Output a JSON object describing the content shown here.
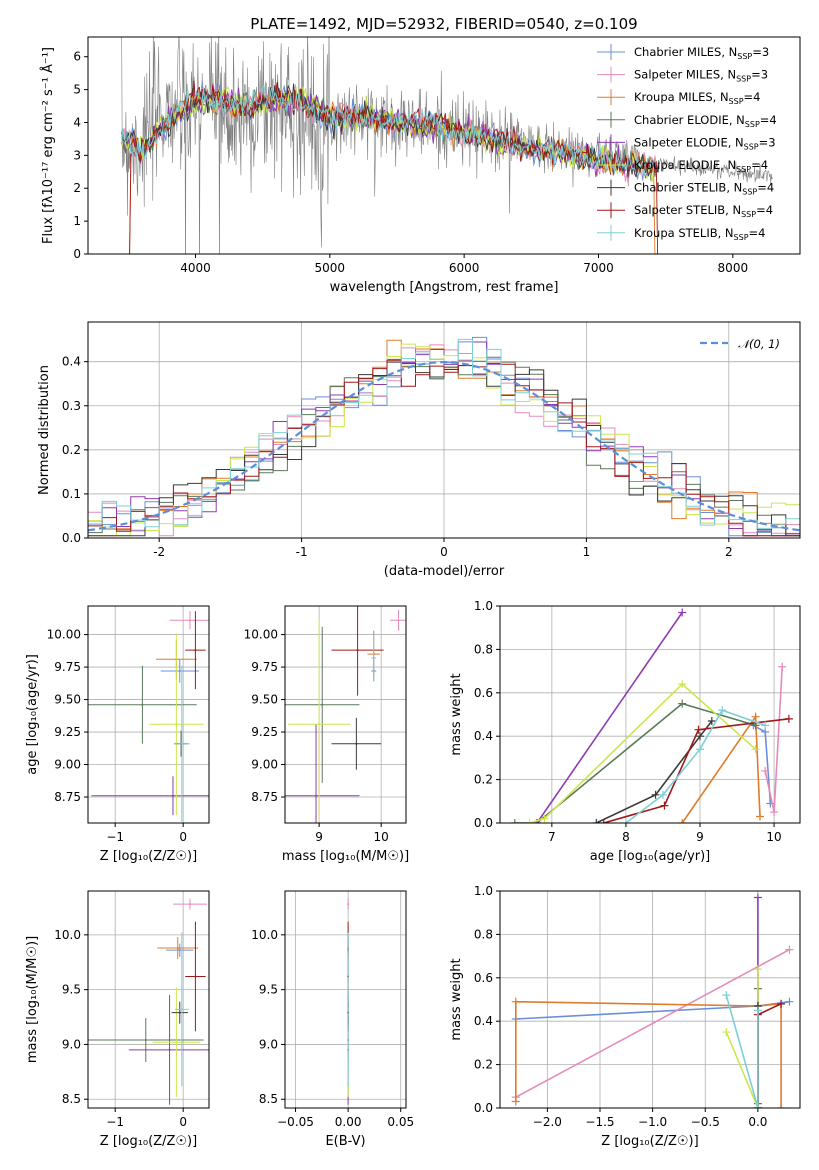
{
  "title": "PLATE=1492, MJD=52932, FIBERID=0540, z=0.109",
  "colors": {
    "Chabrier MILES": "#6a8fd8",
    "Salpeter MILES": "#e58bbb",
    "Kroupa MILES": "#e07b2a",
    "Chabrier ELODIE": "#5a7a5a",
    "Salpeter ELODIE": "#8e3bb0",
    "Kroupa ELODIE": "#cce64d",
    "Chabrier STELIB": "#3a3a3a",
    "Salpeter STELIB": "#a01818",
    "Kroupa STELIB": "#7ccfd6",
    "data": "#808080",
    "gauss": "#5a8fdc",
    "grid": "#b0b0b0"
  },
  "chart_data": [
    {
      "id": "spectrum",
      "type": "line",
      "title": "PLATE=1492, MJD=52932, FIBERID=0540, z=0.109",
      "xlabel": "wavelength [Angstrom, rest frame]",
      "ylabel": "Flux [fλ10⁻¹⁷ erg cm⁻² s⁻¹ Å⁻¹]",
      "xlim": [
        3200,
        8500
      ],
      "ylim": [
        0,
        6.6
      ],
      "xticks": [
        4000,
        5000,
        6000,
        7000,
        8000
      ],
      "yticks": [
        0,
        1,
        2,
        3,
        4,
        5,
        6
      ],
      "grid": false,
      "legend": "top-right",
      "legend_entries": [
        {
          "series": "Chabrier MILES",
          "label": "Chabrier MILES, N",
          "sub": "SSP",
          "suffix": "=3"
        },
        {
          "series": "Salpeter MILES",
          "label": "Salpeter MILES, N",
          "sub": "SSP",
          "suffix": "=3"
        },
        {
          "series": "Kroupa MILES",
          "label": "Kroupa MILES, N",
          "sub": "SSP",
          "suffix": "=4"
        },
        {
          "series": "Chabrier ELODIE",
          "label": "Chabrier ELODIE, N",
          "sub": "SSP",
          "suffix": "=4"
        },
        {
          "series": "Salpeter ELODIE",
          "label": "Salpeter ELODIE, N",
          "sub": "SSP",
          "suffix": "=3"
        },
        {
          "series": "Kroupa ELODIE",
          "label": "Kroupa ELODIE, N",
          "sub": "SSP",
          "suffix": "=4"
        },
        {
          "series": "Chabrier STELIB",
          "label": "Chabrier STELIB, N",
          "sub": "SSP",
          "suffix": "=4"
        },
        {
          "series": "Salpeter STELIB",
          "label": "Salpeter STELIB, N",
          "sub": "SSP",
          "suffix": "=4"
        },
        {
          "series": "Kroupa STELIB",
          "label": "Kroupa STELIB, N",
          "sub": "SSP",
          "suffix": "=4"
        }
      ],
      "data_envelope": {
        "x": [
          3450,
          3550,
          3650,
          3750,
          3850,
          3950,
          4050,
          4150,
          4250,
          4350,
          4500,
          4700,
          4900,
          5100,
          5300,
          5500,
          5700,
          5900,
          6100,
          6300,
          6500,
          6700,
          6900,
          7100,
          7300,
          7500,
          7700,
          7900,
          8100,
          8300
        ],
        "y": [
          3.5,
          3.3,
          3.6,
          4.5,
          4.4,
          4.3,
          4.6,
          4.4,
          4.3,
          4.2,
          4.5,
          4.5,
          4.0,
          4.2,
          4.1,
          4.1,
          3.9,
          3.8,
          3.6,
          3.5,
          3.3,
          3.2,
          3.1,
          3.0,
          2.85,
          2.75,
          2.65,
          2.55,
          2.45,
          2.35
        ]
      },
      "model_envelope": {
        "x": [
          3450,
          3600,
          3800,
          4000,
          4200,
          4400,
          4600,
          4800,
          5000,
          5200,
          5400,
          5600,
          5800,
          6000,
          6200,
          6400,
          6600,
          6800,
          7000,
          7200,
          7400
        ],
        "y": [
          3.6,
          3.2,
          4.2,
          4.8,
          4.8,
          4.6,
          4.9,
          4.8,
          4.3,
          4.3,
          4.2,
          4.1,
          4.0,
          3.8,
          3.6,
          3.4,
          3.25,
          3.1,
          2.95,
          2.8,
          2.7
        ]
      }
    },
    {
      "id": "residuals",
      "type": "line",
      "xlabel": "(data-model)/error",
      "ylabel": "Normed distribution",
      "xlim": [
        -2.5,
        2.5
      ],
      "ylim": [
        0,
        0.49
      ],
      "xticks": [
        -2,
        -1,
        0,
        1,
        2
      ],
      "yticks": [
        0.0,
        0.1,
        0.2,
        0.3,
        0.4
      ],
      "ytick_labels": [
        "0.0",
        "0.1",
        "0.2",
        "0.3",
        "0.4"
      ],
      "grid": true,
      "legend": "top-right",
      "legend_label": "𝒩(0, 1)",
      "bin_width": 0.1,
      "hist_start": -2.5
    },
    {
      "id": "age-Z",
      "type": "scatter",
      "xlabel": "Z [log₁₀(Z/Z☉)]",
      "ylabel": "age  [log₁₀(age/yr)]",
      "xlim": [
        -1.4,
        0.38
      ],
      "ylim": [
        8.55,
        10.22
      ],
      "xticks": [
        -1,
        0
      ],
      "xtick_labels": [
        "−1",
        "0"
      ],
      "yticks": [
        8.75,
        9.0,
        9.25,
        9.5,
        9.75,
        10.0
      ],
      "ytick_labels": [
        "8.75",
        "9.00",
        "9.25",
        "9.50",
        "9.75",
        "10.00"
      ],
      "grid": true,
      "points": [
        {
          "series": "Chabrier MILES",
          "x": -0.05,
          "y": 9.72,
          "xerr": 0.28,
          "yerr": 0.09
        },
        {
          "series": "Salpeter MILES",
          "x": 0.1,
          "y": 10.11,
          "xerr": 0.3,
          "yerr": 0.07
        },
        {
          "series": "Kroupa MILES",
          "x": -0.1,
          "y": 9.81,
          "xerr": 0.3,
          "yerr": 0.15
        },
        {
          "series": "Chabrier ELODIE",
          "x": -0.6,
          "y": 9.46,
          "xerr": 0.8,
          "yerr": 0.3
        },
        {
          "series": "Salpeter ELODIE",
          "x": -0.15,
          "y": 8.76,
          "xerr": 1.2,
          "yerr": 0.15
        },
        {
          "series": "Kroupa ELODIE",
          "x": -0.1,
          "y": 9.31,
          "xerr": 0.4,
          "yerr": 0.7
        },
        {
          "series": "Chabrier STELIB",
          "x": -0.03,
          "y": 9.16,
          "xerr": 0.1,
          "yerr": 0.1
        },
        {
          "series": "Salpeter STELIB",
          "x": 0.18,
          "y": 9.88,
          "xerr": 0.15,
          "yerr": 0.3
        },
        {
          "series": "Kroupa STELIB",
          "x": -0.02,
          "y": 9.16,
          "xerr": 0.12,
          "yerr": 0.6
        }
      ]
    },
    {
      "id": "age-mass",
      "type": "scatter",
      "xlabel": "mass [log₁₀(M/M☉)]",
      "ylabel": "",
      "xlim": [
        8.45,
        10.4
      ],
      "ylim": [
        8.55,
        10.22
      ],
      "xticks": [
        9,
        10
      ],
      "xtick_labels": [
        "9",
        "10"
      ],
      "yticks": [
        8.75,
        9.0,
        9.25,
        9.5,
        9.75,
        10.0
      ],
      "ytick_labels": [
        "8.75",
        "9.00",
        "9.25",
        "9.50",
        "9.75",
        "10.00"
      ],
      "grid": true,
      "points": [
        {
          "series": "Chabrier MILES",
          "x": 9.88,
          "y": 9.72,
          "xerr": 0.04,
          "yerr": 0.08
        },
        {
          "series": "Salpeter MILES",
          "x": 10.28,
          "y": 10.11,
          "xerr": 0.14,
          "yerr": 0.08
        },
        {
          "series": "Kroupa MILES",
          "x": 9.88,
          "y": 9.85,
          "xerr": 0.1,
          "yerr": 0.18
        },
        {
          "series": "Chabrier ELODIE",
          "x": 9.05,
          "y": 9.46,
          "xerr": 0.6,
          "yerr": 0.6
        },
        {
          "series": "Salpeter ELODIE",
          "x": 8.95,
          "y": 8.76,
          "xerr": 0.7,
          "yerr": 0.55
        },
        {
          "series": "Kroupa ELODIE",
          "x": 9.0,
          "y": 9.31,
          "xerr": 0.5,
          "yerr": 0.8
        },
        {
          "series": "Chabrier STELIB",
          "x": 9.6,
          "y": 9.16,
          "xerr": 0.4,
          "yerr": 0.2
        },
        {
          "series": "Salpeter STELIB",
          "x": 9.62,
          "y": 9.88,
          "xerr": 0.42,
          "yerr": 0.35
        },
        {
          "series": "Kroupa STELIB",
          "x": 9.88,
          "y": 9.82,
          "xerr": 0.04,
          "yerr": 0.18
        }
      ]
    },
    {
      "id": "weight-age",
      "type": "line",
      "xlabel": "age  [log₁₀(age/yr)]",
      "ylabel": "mass weight",
      "xlim": [
        6.3,
        10.35
      ],
      "ylim": [
        0,
        1.0
      ],
      "xticks": [
        7,
        8,
        9,
        10
      ],
      "yticks": [
        0.0,
        0.2,
        0.4,
        0.6,
        0.8,
        1.0
      ],
      "ytick_labels": [
        "0.0",
        "0.2",
        "0.4",
        "0.6",
        "0.8",
        "1.0"
      ],
      "grid": true,
      "series": [
        {
          "name": "Chabrier MILES",
          "x": [
            9.72,
            9.88,
            9.95
          ],
          "y": [
            0.45,
            0.42,
            0.09
          ]
        },
        {
          "name": "Salpeter MILES",
          "x": [
            9.88,
            10.0,
            10.11
          ],
          "y": [
            0.24,
            0.05,
            0.72
          ]
        },
        {
          "name": "Kroupa MILES",
          "x": [
            8.76,
            9.75,
            9.81
          ],
          "y": [
            0.0,
            0.49,
            0.03
          ]
        },
        {
          "name": "Chabrier ELODIE",
          "x": [
            6.5,
            6.8,
            8.76,
            9.75
          ],
          "y": [
            0.0,
            0.0,
            0.55,
            0.45
          ]
        },
        {
          "name": "Salpeter ELODIE",
          "x": [
            6.8,
            8.76
          ],
          "y": [
            0.0,
            0.97
          ]
        },
        {
          "name": "Kroupa ELODIE",
          "x": [
            6.7,
            6.9,
            8.76,
            9.75
          ],
          "y": [
            0.0,
            0.02,
            0.64,
            0.34
          ]
        },
        {
          "name": "Chabrier STELIB",
          "x": [
            7.6,
            8.4,
            9.0,
            9.16
          ],
          "y": [
            0.0,
            0.13,
            0.4,
            0.47
          ]
        },
        {
          "name": "Salpeter STELIB",
          "x": [
            7.7,
            8.52,
            8.98,
            10.2
          ],
          "y": [
            0.0,
            0.08,
            0.43,
            0.48
          ]
        },
        {
          "name": "Kroupa STELIB",
          "x": [
            8.0,
            8.5,
            9.0,
            9.3,
            9.88
          ],
          "y": [
            0.0,
            0.13,
            0.34,
            0.52,
            0.45
          ]
        }
      ]
    },
    {
      "id": "mass-Z",
      "type": "scatter",
      "xlabel": "Z [log₁₀(Z/Z☉)]",
      "ylabel": "mass [log₁₀(M/M☉)]",
      "xlim": [
        -1.4,
        0.38
      ],
      "ylim": [
        8.42,
        10.4
      ],
      "xticks": [
        -1,
        0
      ],
      "xtick_labels": [
        "−1",
        "0"
      ],
      "yticks": [
        8.5,
        9.0,
        9.5,
        10.0
      ],
      "ytick_labels": [
        "8.5",
        "9.0",
        "9.5",
        "10.0"
      ],
      "grid": true,
      "points": [
        {
          "series": "Chabrier MILES",
          "x": -0.05,
          "y": 9.86,
          "xerr": 0.2,
          "yerr": 0.06
        },
        {
          "series": "Salpeter MILES",
          "x": 0.1,
          "y": 10.28,
          "xerr": 0.25,
          "yerr": 0.05
        },
        {
          "series": "Kroupa MILES",
          "x": -0.08,
          "y": 9.88,
          "xerr": 0.3,
          "yerr": 0.1
        },
        {
          "series": "Chabrier ELODIE",
          "x": -0.55,
          "y": 9.04,
          "xerr": 0.85,
          "yerr": 0.2
        },
        {
          "series": "Salpeter ELODIE",
          "x": -0.2,
          "y": 8.95,
          "xerr": 0.6,
          "yerr": 0.5
        },
        {
          "series": "Kroupa ELODIE",
          "x": -0.1,
          "y": 9.02,
          "xerr": 0.35,
          "yerr": 0.5
        },
        {
          "series": "Chabrier STELIB",
          "x": -0.05,
          "y": 9.29,
          "xerr": 0.12,
          "yerr": 0.1
        },
        {
          "series": "Salpeter STELIB",
          "x": 0.18,
          "y": 9.62,
          "xerr": 0.15,
          "yerr": 0.5
        },
        {
          "series": "Kroupa STELIB",
          "x": -0.02,
          "y": 9.32,
          "xerr": 0.1,
          "yerr": 0.7
        }
      ]
    },
    {
      "id": "mass-ebv",
      "type": "scatter",
      "xlabel": "E(B-V)",
      "ylabel": "",
      "xlim": [
        -0.06,
        0.055
      ],
      "ylim": [
        8.42,
        10.4
      ],
      "xticks": [
        -0.05,
        0.0,
        0.05
      ],
      "xtick_labels": [
        "−0.05",
        "0.00",
        "0.05"
      ],
      "yticks": [
        8.5,
        9.0,
        9.5,
        10.0
      ],
      "ytick_labels": [
        "8.5",
        "9.0",
        "9.5",
        "10.0"
      ],
      "grid": true,
      "points": [
        {
          "series": "Chabrier MILES",
          "x": 0.0,
          "y": 9.86,
          "xerr": 0.0,
          "yerr": 0.06
        },
        {
          "series": "Salpeter MILES",
          "x": 0.0,
          "y": 10.28,
          "xerr": 0.0,
          "yerr": 0.05
        },
        {
          "series": "Kroupa MILES",
          "x": 0.0,
          "y": 9.88,
          "xerr": 0.0,
          "yerr": 0.1
        },
        {
          "series": "Chabrier ELODIE",
          "x": 0.0,
          "y": 9.04,
          "xerr": 0.0,
          "yerr": 0.2
        },
        {
          "series": "Salpeter ELODIE",
          "x": 0.0,
          "y": 8.95,
          "xerr": 0.0,
          "yerr": 0.5
        },
        {
          "series": "Kroupa ELODIE",
          "x": 0.0,
          "y": 9.02,
          "xerr": 0.0,
          "yerr": 0.5
        },
        {
          "series": "Chabrier STELIB",
          "x": 0.0,
          "y": 9.29,
          "xerr": 0.0,
          "yerr": 0.1
        },
        {
          "series": "Salpeter STELIB",
          "x": 0.0,
          "y": 9.62,
          "xerr": 0.0,
          "yerr": 0.5
        },
        {
          "series": "Kroupa STELIB",
          "x": 0.0,
          "y": 9.32,
          "xerr": 0.0,
          "yerr": 0.7
        }
      ]
    },
    {
      "id": "weight-Z",
      "type": "line",
      "xlabel": "Z [log₁₀(Z/Z☉)]",
      "ylabel": "mass weight",
      "xlim": [
        -2.45,
        0.4
      ],
      "ylim": [
        0,
        1.0
      ],
      "xticks": [
        -2.0,
        -1.5,
        -1.0,
        -0.5,
        0.0
      ],
      "xtick_labels": [
        "−2.0",
        "−1.5",
        "−1.0",
        "−0.5",
        "0.0"
      ],
      "yticks": [
        0.0,
        0.2,
        0.4,
        0.6,
        0.8,
        1.0
      ],
      "ytick_labels": [
        "0.0",
        "0.2",
        "0.4",
        "0.6",
        "0.8",
        "1.0"
      ],
      "grid": true,
      "series": [
        {
          "name": "Chabrier MILES",
          "x": [
            -2.3,
            0.0,
            0.3
          ],
          "y": [
            0.41,
            0.47,
            0.49
          ]
        },
        {
          "name": "Salpeter MILES",
          "x": [
            -2.3,
            0.3
          ],
          "y": [
            0.05,
            0.73
          ]
        },
        {
          "name": "Kroupa MILES",
          "x": [
            -2.3,
            -2.3,
            0.0,
            0.22,
            0.22
          ],
          "y": [
            0.03,
            0.49,
            0.47,
            0.48,
            0.0
          ]
        },
        {
          "name": "Chabrier ELODIE",
          "x": [
            0.0,
            0.0
          ],
          "y": [
            0.02,
            0.55
          ]
        },
        {
          "name": "Salpeter ELODIE",
          "x": [
            0.0,
            0.0
          ],
          "y": [
            0.0,
            0.97
          ]
        },
        {
          "name": "Kroupa ELODIE",
          "x": [
            -0.3,
            0.0,
            0.0
          ],
          "y": [
            0.35,
            0.0,
            0.64
          ]
        },
        {
          "name": "Chabrier STELIB",
          "x": [
            0.0,
            0.0
          ],
          "y": [
            0.0,
            0.47
          ]
        },
        {
          "name": "Salpeter STELIB",
          "x": [
            0.0,
            0.0,
            0.22
          ],
          "y": [
            0.0,
            0.43,
            0.48
          ]
        },
        {
          "name": "Kroupa STELIB",
          "x": [
            -0.3,
            0.0,
            0.0
          ],
          "y": [
            0.52,
            0.0,
            0.45
          ]
        }
      ]
    }
  ]
}
